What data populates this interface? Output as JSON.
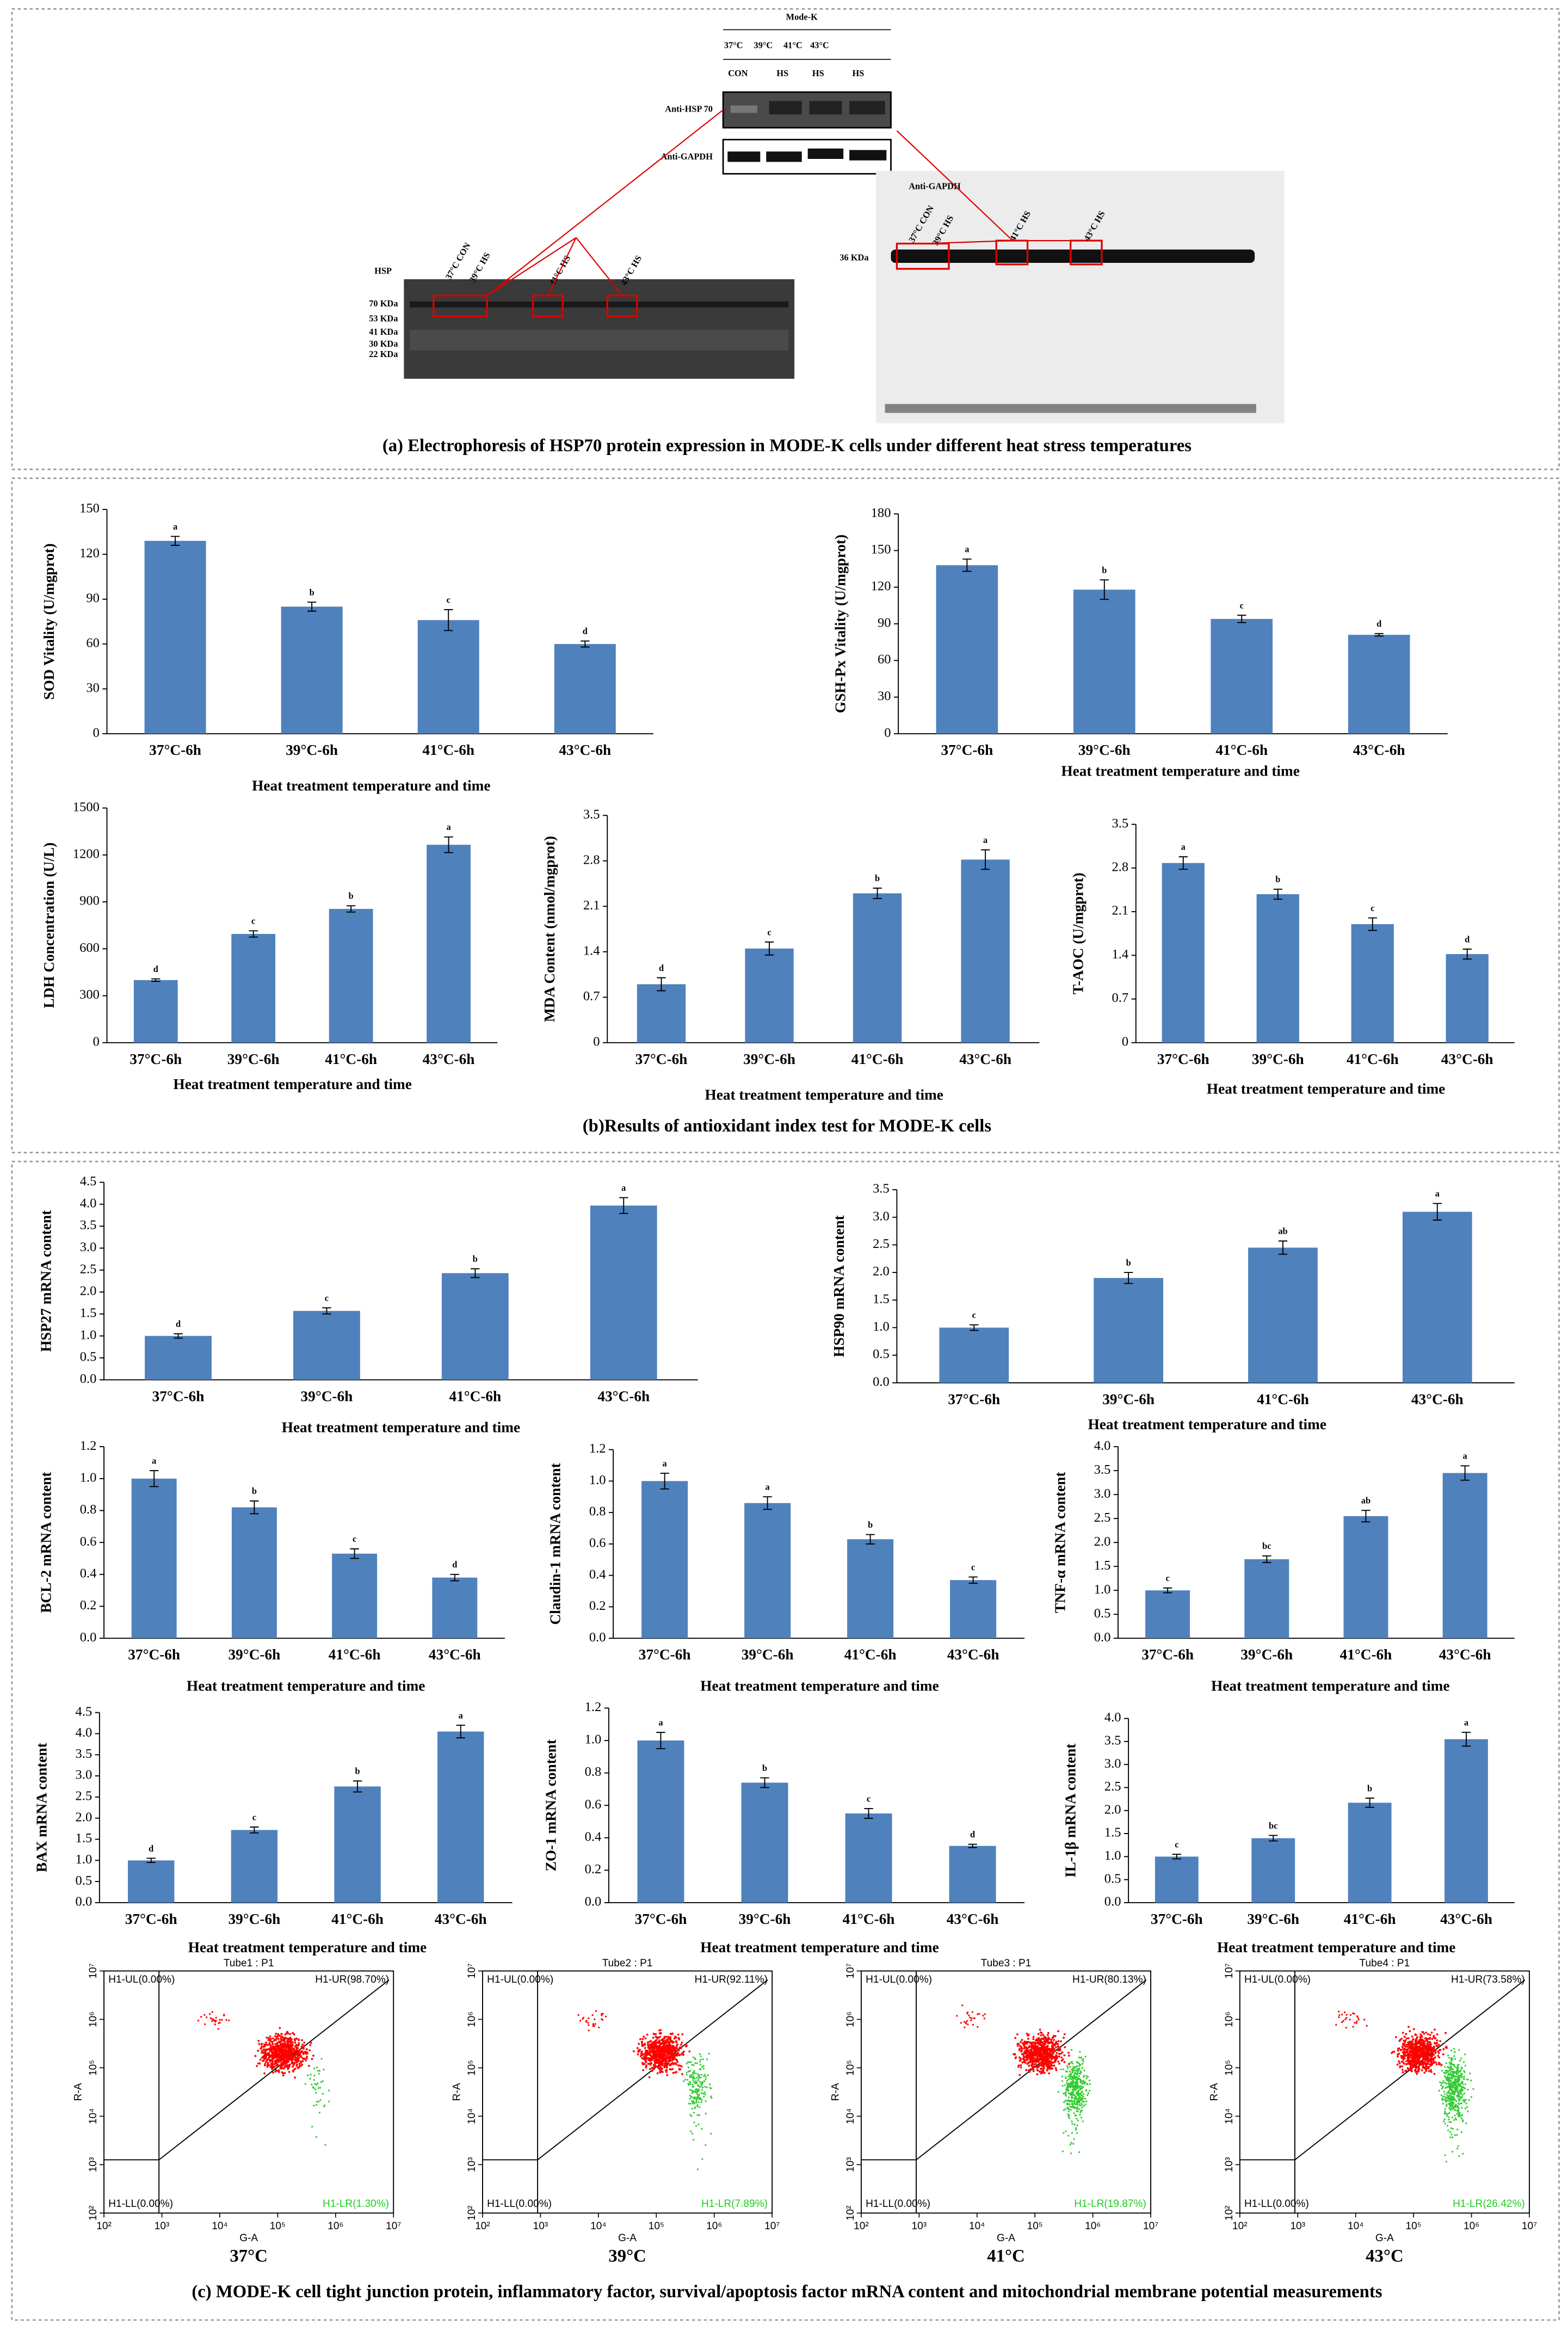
{
  "panel_a": {
    "caption": "(a) Electrophoresis of HSP70 protein expression in MODE-K cells under different heat stress temperatures",
    "blot_header": "Mode-K",
    "temps": [
      "37°C",
      "39°C",
      "41°C",
      "43°C"
    ],
    "groups": [
      "CON",
      "HS",
      "HS",
      "HS"
    ],
    "rows": [
      "Anti-HSP 70",
      "Anti-GAPDH"
    ],
    "hsp_gel": {
      "title": "HSP",
      "markers": [
        "70 KDa",
        "53 KDa",
        "41 KDa",
        "30 KDa",
        "22 KDa"
      ],
      "lanes": [
        "37°C CON",
        "39°C HS",
        "41°C HS",
        "43°C HS"
      ]
    },
    "gapdh_gel": {
      "title": "Anti-GAPDH",
      "marker": "36 KDa",
      "lanes": [
        "37°C CON",
        "39°C HS",
        "41°C HS",
        "43°C HS"
      ]
    }
  },
  "panel_b_caption": "(b)Results of antioxidant index test for MODE-K cells",
  "panel_c_caption": "(c)  MODE-K cell tight junction protein, inflammatory factor, survival/apoptosis factor mRNA content and mitochondrial membrane potential measurements",
  "chart_data": [
    {
      "type": "bar",
      "ylabel": "SOD Vitality  (U/mgprot)",
      "xlabel": "Heat treatment temperature and time",
      "categories": [
        "37°C-6h",
        "39°C-6h",
        "41°C-6h",
        "43°C-6h"
      ],
      "values": [
        129,
        85,
        76,
        60
      ],
      "errors": [
        3,
        3,
        7,
        2
      ],
      "annotations": [
        "a",
        "b",
        "c",
        "d"
      ],
      "ylim": [
        0,
        150
      ],
      "yticks": [
        0,
        30,
        60,
        90,
        120,
        150
      ],
      "color": "#4f81bd"
    },
    {
      "type": "bar",
      "ylabel": "GSH-Px Vitality  (U/mgprot)",
      "xlabel": "Heat treatment temperature and time",
      "categories": [
        "37°C-6h",
        "39°C-6h",
        "41°C-6h",
        "43°C-6h"
      ],
      "values": [
        138,
        118,
        94,
        81
      ],
      "errors": [
        5,
        8,
        3,
        1
      ],
      "annotations": [
        "a",
        "b",
        "c",
        "d"
      ],
      "ylim": [
        0,
        180
      ],
      "yticks": [
        0,
        30,
        60,
        90,
        120,
        150,
        180
      ],
      "color": "#4f81bd"
    },
    {
      "type": "bar",
      "ylabel": "LDH Concentration   (U/L)",
      "xlabel": "Heat treatment temperature and time",
      "categories": [
        "37°C-6h",
        "39°C-6h",
        "41°C-6h",
        "43°C-6h"
      ],
      "values": [
        400,
        695,
        855,
        1265
      ],
      "errors": [
        8,
        20,
        20,
        50
      ],
      "annotations": [
        "d",
        "c",
        "b",
        "a"
      ],
      "ylim": [
        0,
        1500
      ],
      "yticks": [
        0,
        300,
        600,
        900,
        1200,
        1500
      ],
      "color": "#4f81bd"
    },
    {
      "type": "bar",
      "ylabel": "MDA Content  (nmol/mgprot)",
      "xlabel": "Heat treatment temperature and time",
      "categories": [
        "37°C-6h",
        "39°C-6h",
        "41°C-6h",
        "43°C-6h"
      ],
      "values": [
        0.9,
        1.45,
        2.3,
        2.82
      ],
      "errors": [
        0.1,
        0.1,
        0.08,
        0.15
      ],
      "annotations": [
        "d",
        "c",
        "b",
        "a"
      ],
      "ylim": [
        0,
        3.5
      ],
      "yticks": [
        0,
        0.7,
        1.4,
        2.1,
        2.8,
        3.5
      ],
      "color": "#4f81bd"
    },
    {
      "type": "bar",
      "ylabel": "T-AOC  (U/mgprot)",
      "xlabel": "Heat treatment temperature and time",
      "categories": [
        "37°C-6h",
        "39°C-6h",
        "41°C-6h",
        "43°C-6h"
      ],
      "values": [
        2.88,
        2.38,
        1.9,
        1.42
      ],
      "errors": [
        0.1,
        0.08,
        0.1,
        0.08
      ],
      "annotations": [
        "a",
        "b",
        "c",
        "d"
      ],
      "ylim": [
        0,
        3.5
      ],
      "yticks": [
        0,
        0.7,
        1.4,
        2.1,
        2.8,
        3.5
      ],
      "color": "#4f81bd"
    },
    {
      "type": "bar",
      "ylabel": "HSP27 mRNA content",
      "xlabel": "Heat treatment temperature and time",
      "categories": [
        "37°C-6h",
        "39°C-6h",
        "41°C-6h",
        "43°C-6h"
      ],
      "values": [
        1.0,
        1.57,
        2.43,
        3.97
      ],
      "errors": [
        0.05,
        0.07,
        0.1,
        0.18
      ],
      "annotations": [
        "d",
        "c",
        "b",
        "a"
      ],
      "ylim": [
        0,
        4.5
      ],
      "yticks": [
        {
          "value": 0,
          "label": "0.0"
        },
        0.5,
        {
          "value": 1,
          "label": "1.0"
        },
        1.5,
        {
          "value": 2,
          "label": "2.0"
        },
        2.5,
        {
          "value": 3,
          "label": "3.0"
        },
        3.5,
        {
          "value": 4,
          "label": "4.0"
        },
        4.5
      ],
      "color": "#4f81bd"
    },
    {
      "type": "bar",
      "ylabel": "HSP90 mRNA content",
      "xlabel": "Heat treatment temperature and time",
      "categories": [
        "37°C-6h",
        "39°C-6h",
        "41°C-6h",
        "43°C-6h"
      ],
      "values": [
        1.0,
        1.9,
        2.45,
        3.1
      ],
      "errors": [
        0.05,
        0.1,
        0.12,
        0.15
      ],
      "annotations": [
        "c",
        "b",
        "ab",
        "a"
      ],
      "ylim": [
        0,
        3.5
      ],
      "yticks": [
        {
          "value": 0,
          "label": "0.0"
        },
        0.5,
        {
          "value": 1,
          "label": "1.0"
        },
        1.5,
        {
          "value": 2,
          "label": "2.0"
        },
        2.5,
        {
          "value": 3,
          "label": "3.0"
        },
        3.5
      ],
      "color": "#4f81bd"
    },
    {
      "type": "bar",
      "ylabel": "BCL-2 mRNA content",
      "xlabel": "Heat treatment temperature and time",
      "categories": [
        "37°C-6h",
        "39°C-6h",
        "41°C-6h",
        "43°C-6h"
      ],
      "values": [
        1.0,
        0.82,
        0.53,
        0.38
      ],
      "errors": [
        0.05,
        0.04,
        0.03,
        0.02
      ],
      "annotations": [
        "a",
        "b",
        "c",
        "d"
      ],
      "ylim": [
        0,
        1.2
      ],
      "yticks": [
        {
          "value": 0,
          "label": "0.0"
        },
        0.2,
        0.4,
        0.6,
        0.8,
        {
          "value": 1,
          "label": "1.0"
        },
        1.2
      ],
      "color": "#4f81bd"
    },
    {
      "type": "bar",
      "ylabel": "Claudin-1 mRNA content",
      "xlabel": "Heat treatment temperature and time",
      "categories": [
        "37°C-6h",
        "39°C-6h",
        "41°C-6h",
        "43°C-6h"
      ],
      "values": [
        1.0,
        0.86,
        0.63,
        0.37
      ],
      "errors": [
        0.05,
        0.04,
        0.03,
        0.02
      ],
      "annotations": [
        "a",
        "a",
        "b",
        "c"
      ],
      "ylim": [
        0,
        1.2
      ],
      "yticks": [
        {
          "value": 0,
          "label": "0.0"
        },
        0.2,
        0.4,
        0.6,
        0.8,
        {
          "value": 1,
          "label": "1.0"
        },
        1.2
      ],
      "color": "#4f81bd"
    },
    {
      "type": "bar",
      "ylabel": "TNF-α mRNA content",
      "xlabel": "Heat treatment temperature and time",
      "categories": [
        "37°C-6h",
        "39°C-6h",
        "41°C-6h",
        "43°C-6h"
      ],
      "values": [
        1.0,
        1.65,
        2.55,
        3.45
      ],
      "errors": [
        0.05,
        0.07,
        0.12,
        0.15
      ],
      "annotations": [
        "c",
        "bc",
        "ab",
        "a"
      ],
      "ylim": [
        0,
        4.0
      ],
      "yticks": [
        {
          "value": 0,
          "label": "0.0"
        },
        0.5,
        {
          "value": 1,
          "label": "1.0"
        },
        1.5,
        {
          "value": 2,
          "label": "2.0"
        },
        2.5,
        {
          "value": 3,
          "label": "3.0"
        },
        3.5,
        {
          "value": 4,
          "label": "4.0"
        }
      ],
      "color": "#4f81bd"
    },
    {
      "type": "bar",
      "ylabel": "BAX mRNA content",
      "xlabel": "Heat treatment temperature and time",
      "categories": [
        "37°C-6h",
        "39°C-6h",
        "41°C-6h",
        "43°C-6h"
      ],
      "values": [
        1.0,
        1.72,
        2.75,
        4.05
      ],
      "errors": [
        0.05,
        0.07,
        0.13,
        0.15
      ],
      "annotations": [
        "d",
        "c",
        "b",
        "a"
      ],
      "ylim": [
        0,
        4.5
      ],
      "yticks": [
        {
          "value": 0,
          "label": "0.0"
        },
        0.5,
        {
          "value": 1,
          "label": "1.0"
        },
        1.5,
        {
          "value": 2,
          "label": "2.0"
        },
        2.5,
        {
          "value": 3,
          "label": "3.0"
        },
        3.5,
        {
          "value": 4,
          "label": "4.0"
        },
        4.5
      ],
      "color": "#4f81bd"
    },
    {
      "type": "bar",
      "ylabel": "ZO-1 mRNA content",
      "xlabel": "Heat treatment temperature and time",
      "categories": [
        "37°C-6h",
        "39°C-6h",
        "41°C-6h",
        "43°C-6h"
      ],
      "values": [
        1.0,
        0.74,
        0.55,
        0.35
      ],
      "errors": [
        0.05,
        0.03,
        0.03,
        0.01
      ],
      "annotations": [
        "a",
        "b",
        "c",
        "d"
      ],
      "ylim": [
        0,
        1.2
      ],
      "yticks": [
        {
          "value": 0,
          "label": "0.0"
        },
        0.2,
        0.4,
        0.6,
        0.8,
        {
          "value": 1,
          "label": "1.0"
        },
        1.2
      ],
      "color": "#4f81bd"
    },
    {
      "type": "bar",
      "ylabel": "IL-1β mRNA content",
      "xlabel": "Heat treatment temperature and time",
      "categories": [
        "37°C-6h",
        "39°C-6h",
        "41°C-6h",
        "43°C-6h"
      ],
      "values": [
        1.0,
        1.4,
        2.17,
        3.55
      ],
      "errors": [
        0.05,
        0.06,
        0.1,
        0.15
      ],
      "annotations": [
        "c",
        "bc",
        "b",
        "a"
      ],
      "ylim": [
        0,
        4.0
      ],
      "yticks": [
        {
          "value": 0,
          "label": "0.0"
        },
        0.5,
        {
          "value": 1,
          "label": "1.0"
        },
        1.5,
        {
          "value": 2,
          "label": "2.0"
        },
        2.5,
        {
          "value": 3,
          "label": "3.0"
        },
        3.5,
        {
          "value": 4,
          "label": "4.0"
        }
      ],
      "color": "#4f81bd"
    }
  ],
  "flow_axes": {
    "x_label": "G-A",
    "y_label": "R-A",
    "ticks": [
      {
        "value": 2,
        "label": "10²"
      },
      {
        "value": 3,
        "label": "10³"
      },
      {
        "value": 4,
        "label": "10⁴"
      },
      {
        "value": 5,
        "label": "10⁵"
      },
      {
        "value": 6,
        "label": "10⁶"
      },
      {
        "value": 7,
        "label": "10⁷"
      }
    ]
  },
  "flow": [
    {
      "title": "Tube1 : P1",
      "ul": "H1-UL(0.00%)",
      "ur": "H1-UR(98.70%)",
      "ll": "H1-LL(0.00%)",
      "lr": "H1-LR(1.30%)",
      "label": "37°C"
    },
    {
      "title": "Tube2 : P1",
      "ul": "H1-UL(0.00%)",
      "ur": "H1-UR(92.11%)",
      "ll": "H1-LL(0.00%)",
      "lr": "H1-LR(7.89%)",
      "label": "39°C"
    },
    {
      "title": "Tube3 : P1",
      "ul": "H1-UL(0.00%)",
      "ur": "H1-UR(80.13%)",
      "ll": "H1-LL(0.00%)",
      "lr": "H1-LR(19.87%)",
      "label": "41°C"
    },
    {
      "title": "Tube4 : P1",
      "ul": "H1-UL(0.00%)",
      "ur": "H1-UR(73.58%)",
      "ll": "H1-LL(0.00%)",
      "lr": "H1-LR(26.42%)",
      "label": "43°C"
    }
  ]
}
